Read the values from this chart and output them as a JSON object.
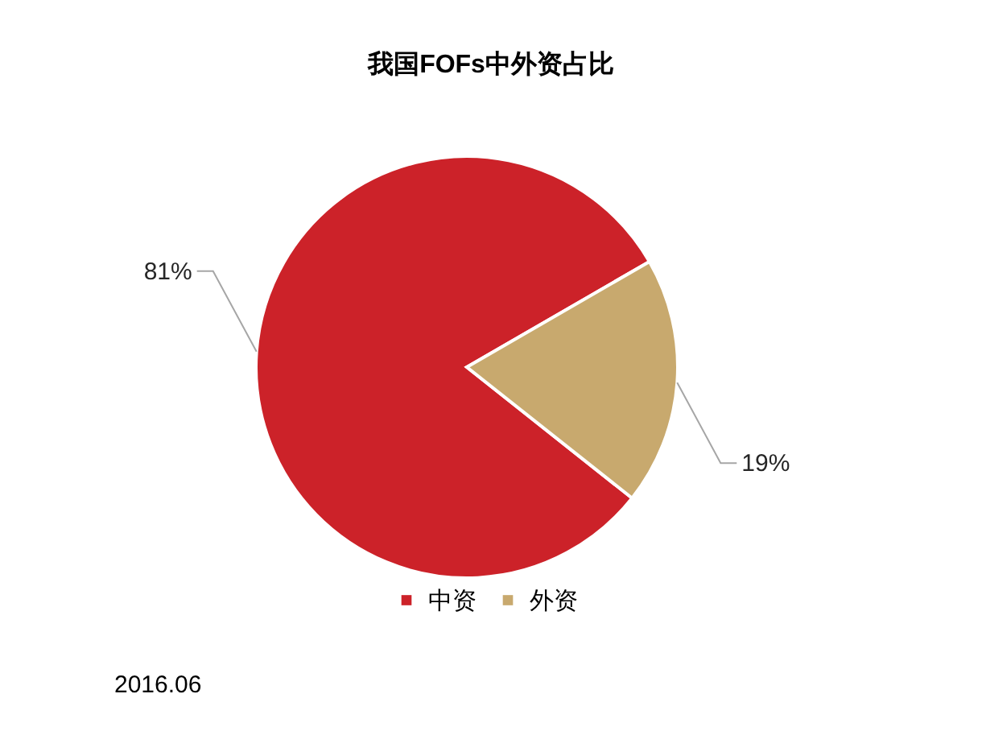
{
  "chart_data": {
    "type": "pie",
    "title": "我国FOFs中外资占比",
    "categories": [
      "中资",
      "外资"
    ],
    "values": [
      81,
      19
    ],
    "colors": [
      "#cc2229",
      "#c8a96e"
    ],
    "value_labels": [
      "81%",
      "19%"
    ],
    "legend": "bottom",
    "annotations": [
      "2016.06"
    ]
  }
}
